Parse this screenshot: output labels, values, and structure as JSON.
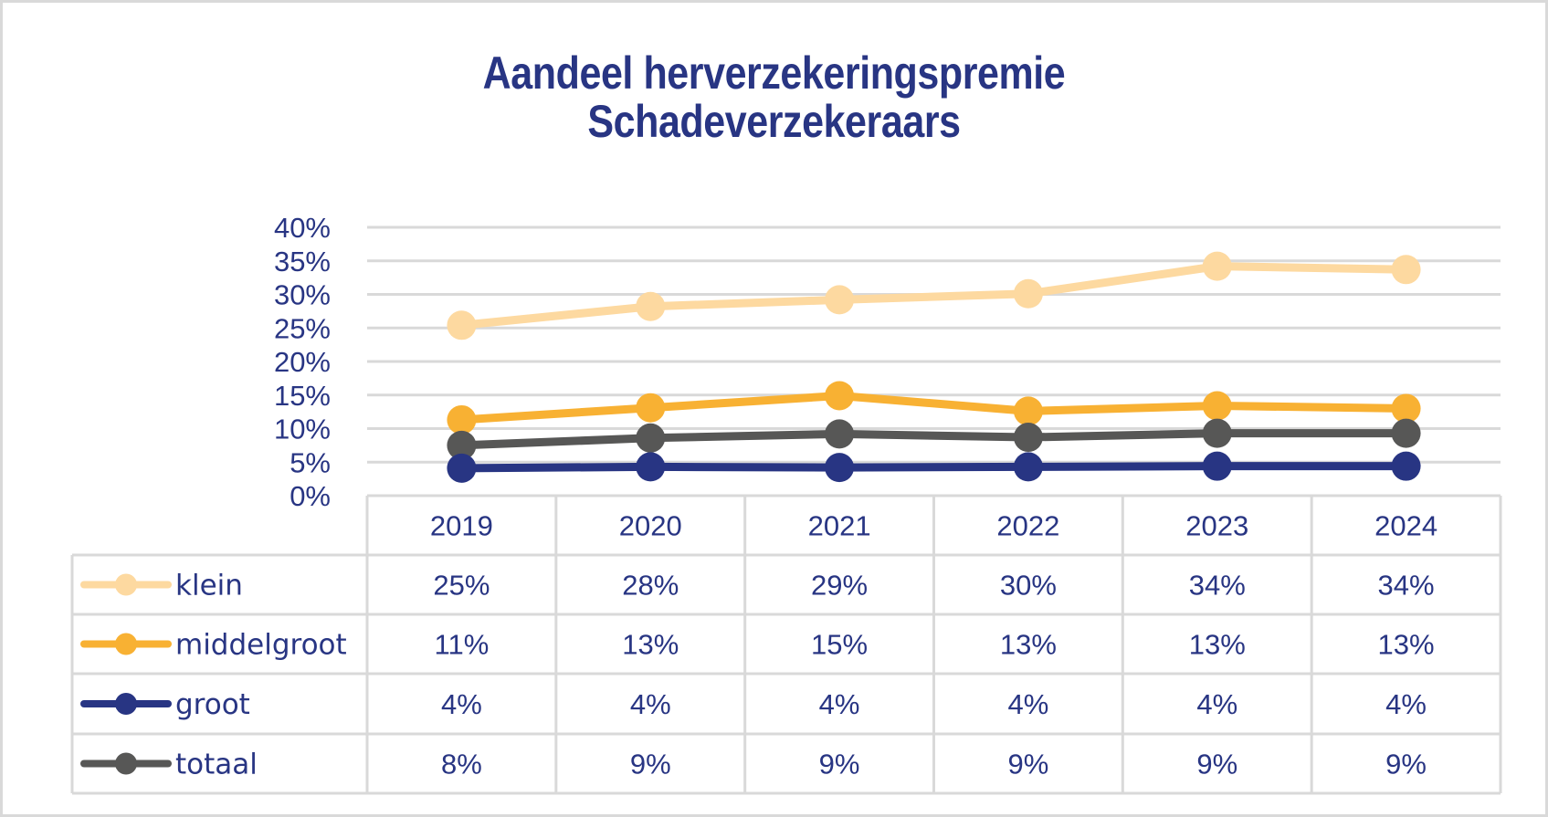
{
  "chart_data": {
    "type": "line",
    "title": "Aandeel herverzekeringspremie",
    "subtitle": "Schadeverzekeraars",
    "xlabel": "",
    "ylabel": "",
    "ylim": [
      0,
      40
    ],
    "ytick_step": 5,
    "yticks": [
      "0%",
      "5%",
      "10%",
      "15%",
      "20%",
      "25%",
      "30%",
      "35%",
      "40%"
    ],
    "grid": true,
    "legend_placement": "data-table-left",
    "categories": [
      "2019",
      "2020",
      "2021",
      "2022",
      "2023",
      "2024"
    ],
    "series": [
      {
        "name": "klein",
        "color": "#fdd9a0",
        "values": [
          25.4,
          28.2,
          29.2,
          30.1,
          34.2,
          33.7
        ],
        "labels": [
          "25%",
          "28%",
          "29%",
          "30%",
          "34%",
          "34%"
        ]
      },
      {
        "name": "middelgroot",
        "color": "#f8b133",
        "values": [
          11.3,
          13.1,
          14.9,
          12.6,
          13.4,
          13.0
        ],
        "labels": [
          "11%",
          "13%",
          "15%",
          "13%",
          "13%",
          "13%"
        ]
      },
      {
        "name": "groot",
        "color": "#283583",
        "values": [
          4.1,
          4.3,
          4.2,
          4.3,
          4.4,
          4.4
        ],
        "labels": [
          "4%",
          "4%",
          "4%",
          "4%",
          "4%",
          "4%"
        ]
      },
      {
        "name": "totaal",
        "color": "#575756",
        "values": [
          7.5,
          8.6,
          9.2,
          8.7,
          9.3,
          9.3
        ],
        "labels": [
          "8%",
          "9%",
          "9%",
          "9%",
          "9%",
          "9%"
        ]
      }
    ]
  },
  "colors": {
    "text": "#283583",
    "grid": "#d9d9d9"
  }
}
